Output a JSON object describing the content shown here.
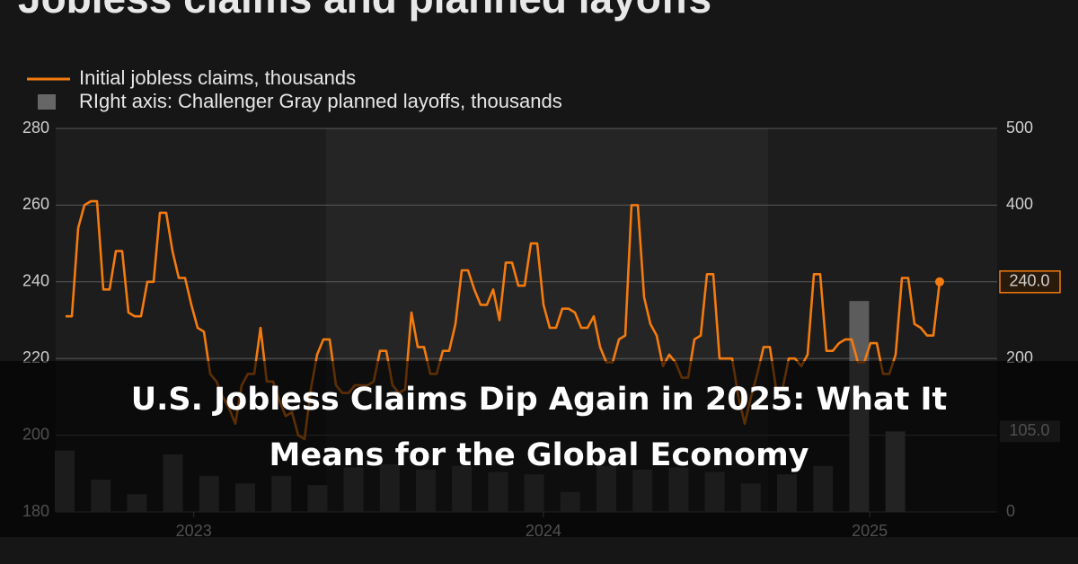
{
  "chart_data": {
    "type": "line-bar",
    "title": "Jobless claims and planned layoffs",
    "banner": [
      "U.S. Jobless Claims Dip Again in 2025: What It",
      "Means for the Global Economy"
    ],
    "series": [
      {
        "name": "Initial jobless claims, thousands",
        "type": "line",
        "color": "#f47b0e",
        "end_label": "240.0",
        "values": [
          231,
          231,
          254,
          260,
          261,
          261,
          238,
          238,
          248,
          248,
          232,
          231,
          231,
          240,
          240,
          258,
          258,
          248,
          241,
          241,
          234,
          228,
          227,
          216,
          214,
          210,
          207,
          203,
          213,
          216,
          216,
          228,
          214,
          214,
          209,
          205,
          206,
          200,
          199,
          212,
          221,
          225,
          225,
          213,
          211,
          211,
          213,
          213,
          213,
          214,
          222,
          222,
          213,
          211,
          212,
          232,
          223,
          223,
          216,
          216,
          222,
          222,
          229,
          243,
          243,
          238,
          234,
          234,
          238,
          230,
          245,
          245,
          239,
          239,
          250,
          250,
          234,
          228,
          228,
          233,
          233,
          232,
          228,
          228,
          231,
          223,
          219,
          219,
          225,
          226,
          260,
          260,
          236,
          229,
          226,
          218,
          221,
          219,
          215,
          215,
          225,
          226,
          242,
          242,
          220,
          220,
          220,
          210,
          203,
          210,
          216,
          223,
          223,
          212,
          212,
          220,
          220,
          218,
          221,
          242,
          242,
          222,
          222,
          224,
          225,
          225,
          219,
          219,
          224,
          224,
          216,
          216,
          221,
          241,
          241,
          229,
          228,
          226,
          226,
          240
        ]
      },
      {
        "name": "RIght axis: Challenger Gray planned layoffs, thousands",
        "type": "bar",
        "axis": "y2",
        "color": "#4a4a4a",
        "end_label": "105.0",
        "values": [
          80,
          42,
          23,
          75,
          47,
          37,
          47,
          35,
          58,
          62,
          55,
          60,
          52,
          49,
          26,
          60,
          55,
          58,
          52,
          37,
          49,
          60,
          275,
          105
        ]
      }
    ],
    "ylim": [
      180,
      280
    ],
    "yticks": [
      180,
      200,
      220,
      240,
      260,
      280
    ],
    "y2lim": [
      0,
      500
    ],
    "y2ticks": [
      0,
      100,
      200,
      300,
      400,
      500
    ],
    "xticks": [
      {
        "value": 22,
        "label": "2023"
      },
      {
        "value": 82,
        "label": "2024"
      },
      {
        "value": 138,
        "label": "2025"
      }
    ],
    "xlim": [
      0,
      150
    ],
    "grid": true
  }
}
